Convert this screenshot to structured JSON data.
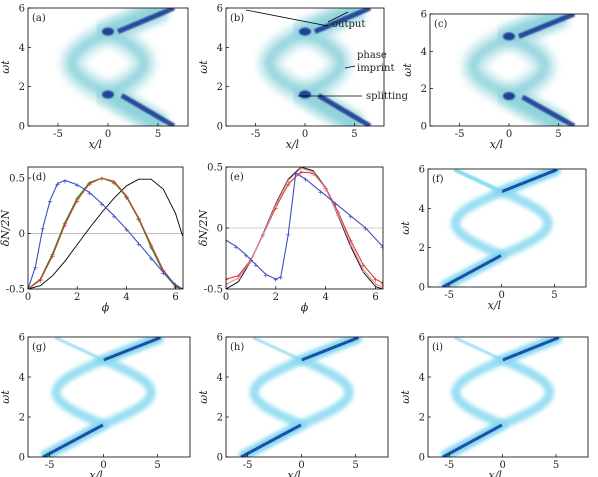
{
  "figure": {
    "annotations": {
      "output": "output",
      "phase": "phase",
      "imprint": "imprint",
      "splitting": "splitting"
    }
  },
  "chart_data": [
    {
      "id": "a",
      "type": "heatmap",
      "panel_label": "(a)",
      "xlabel": "x/l",
      "ylabel": "ωt",
      "xlim": [
        -8,
        8
      ],
      "ylim": [
        0,
        6
      ],
      "xticks": [
        "-5",
        "0",
        "5"
      ],
      "yticks": [
        "0",
        "2",
        "4",
        "6"
      ],
      "colors": {
        "light": "#8fd3dc",
        "dark": "#1f3a93"
      }
    },
    {
      "id": "b",
      "type": "heatmap",
      "panel_label": "(b)",
      "xlabel": "x/l",
      "ylabel": "ωt",
      "xlim": [
        -8,
        8
      ],
      "ylim": [
        0,
        6
      ],
      "xticks": [
        "-5",
        "0",
        "5"
      ],
      "yticks": [
        "0",
        "2",
        "4",
        "6"
      ],
      "colors": {
        "light": "#8fd3dc",
        "dark": "#1f3a93"
      }
    },
    {
      "id": "c",
      "type": "heatmap",
      "panel_label": "(c)",
      "xlabel": "x/l",
      "ylabel": "ωt",
      "xlim": [
        -8,
        8
      ],
      "ylim": [
        0,
        6
      ],
      "xticks": [
        "-5",
        "0",
        "5"
      ],
      "yticks": [
        "0",
        "2",
        "4",
        "6"
      ],
      "colors": {
        "light": "#8fd3dc",
        "dark": "#1f3a93"
      }
    },
    {
      "id": "d",
      "type": "line",
      "panel_label": "(d)",
      "xlabel": "ϕ",
      "ylabel": "δN/2N",
      "xlim": [
        0,
        6.3
      ],
      "ylim": [
        -0.5,
        0.6
      ],
      "xticks": [
        "0",
        "2",
        "4",
        "6"
      ],
      "yticks": [
        "-0.5",
        "0",
        "0.5"
      ],
      "series": [
        {
          "color": "#000000",
          "x": [
            0,
            0.5,
            1.0,
            1.5,
            2.0,
            2.5,
            3.0,
            3.5,
            4.0,
            4.5,
            5.0,
            5.5,
            6.0,
            6.28
          ],
          "y": [
            -0.5,
            -0.47,
            -0.38,
            -0.25,
            -0.1,
            0.05,
            0.19,
            0.32,
            0.43,
            0.49,
            0.49,
            0.4,
            0.18,
            -0.02
          ]
        },
        {
          "color": "#2e8b2e",
          "x": [
            0,
            0.5,
            1.0,
            1.5,
            2.0,
            2.5,
            3.0,
            3.5,
            4.0,
            4.5,
            5.0,
            5.5,
            6.0,
            6.28
          ],
          "y": [
            -0.5,
            -0.41,
            -0.18,
            0.1,
            0.32,
            0.46,
            0.5,
            0.46,
            0.33,
            0.13,
            -0.12,
            -0.35,
            -0.48,
            -0.5
          ]
        },
        {
          "color": "#d33b2c",
          "x": [
            0,
            0.5,
            1.0,
            1.5,
            2.0,
            2.5,
            3.0,
            3.5,
            4.0,
            4.5,
            5.0,
            5.5,
            6.0,
            6.28
          ],
          "y": [
            -0.5,
            -0.42,
            -0.2,
            0.08,
            0.3,
            0.45,
            0.5,
            0.47,
            0.34,
            0.14,
            -0.1,
            -0.33,
            -0.47,
            -0.5
          ]
        },
        {
          "color": "#3a4fc4",
          "x": [
            0,
            0.3,
            0.6,
            0.9,
            1.2,
            1.5,
            2.0,
            2.5,
            3.0,
            3.5,
            4.0,
            4.5,
            5.0,
            5.5,
            6.0,
            6.28
          ],
          "y": [
            -0.5,
            -0.3,
            0.05,
            0.3,
            0.45,
            0.48,
            0.44,
            0.37,
            0.27,
            0.16,
            0.04,
            -0.09,
            -0.22,
            -0.35,
            -0.46,
            -0.5
          ]
        }
      ]
    },
    {
      "id": "e",
      "type": "line",
      "panel_label": "(e)",
      "xlabel": "ϕ",
      "ylabel": "δN/2N",
      "xlim": [
        0,
        6.3
      ],
      "ylim": [
        -0.5,
        0.5
      ],
      "xticks": [
        "0",
        "2",
        "4",
        "6"
      ],
      "yticks": [
        "-0.5",
        "0",
        "0.5"
      ],
      "series": [
        {
          "color": "#000000",
          "x": [
            0,
            0.5,
            1.0,
            1.5,
            2.0,
            2.5,
            3.0,
            3.5,
            4.0,
            4.5,
            5.0,
            5.5,
            6.0,
            6.28
          ],
          "y": [
            -0.5,
            -0.44,
            -0.27,
            -0.04,
            0.2,
            0.4,
            0.5,
            0.47,
            0.33,
            0.1,
            -0.15,
            -0.36,
            -0.48,
            -0.5
          ]
        },
        {
          "color": "#d33b2c",
          "x": [
            0,
            0.5,
            1.0,
            1.5,
            2.0,
            2.5,
            3.0,
            3.5,
            4.0,
            4.5,
            5.0,
            5.5,
            6.0,
            6.28
          ],
          "y": [
            -0.42,
            -0.39,
            -0.26,
            -0.05,
            0.17,
            0.36,
            0.46,
            0.45,
            0.33,
            0.13,
            -0.1,
            -0.3,
            -0.42,
            -0.45
          ]
        },
        {
          "color": "#e08a9a",
          "x": [
            0,
            0.5,
            1.0,
            1.5,
            2.0,
            2.5,
            3.0,
            3.5,
            4.0,
            4.5,
            5.0,
            5.5,
            6.0,
            6.28
          ],
          "y": [
            -0.46,
            -0.41,
            -0.27,
            -0.05,
            0.19,
            0.39,
            0.49,
            0.46,
            0.32,
            0.11,
            -0.13,
            -0.34,
            -0.46,
            -0.48
          ]
        },
        {
          "color": "#3a4fc4",
          "x": [
            0,
            0.4,
            0.8,
            1.2,
            1.6,
            2.0,
            2.2,
            2.5,
            2.8,
            3.2,
            3.8,
            4.4,
            5.0,
            5.6,
            6.28
          ],
          "y": [
            -0.1,
            -0.15,
            -0.22,
            -0.3,
            -0.38,
            -0.42,
            -0.4,
            -0.05,
            0.45,
            0.4,
            0.3,
            0.2,
            0.1,
            0.0,
            -0.15
          ]
        }
      ]
    },
    {
      "id": "f",
      "type": "heatmap",
      "panel_label": "(f)",
      "xlabel": "x/l",
      "ylabel": "ωt",
      "xlim": [
        -7,
        8
      ],
      "ylim": [
        0,
        6
      ],
      "xticks": [
        "-5",
        "0",
        "5"
      ],
      "yticks": [
        "0",
        "2",
        "4",
        "6"
      ],
      "colors": {
        "light": "#7fd6ef",
        "dark": "#1d4fa8"
      }
    },
    {
      "id": "g",
      "type": "heatmap",
      "panel_label": "(g)",
      "xlabel": "x/l",
      "ylabel": "ωt",
      "xlim": [
        -7,
        8
      ],
      "ylim": [
        0,
        6
      ],
      "xticks": [
        "-5",
        "0",
        "5"
      ],
      "yticks": [
        "0",
        "2",
        "4",
        "6"
      ],
      "colors": {
        "light": "#7fd6ef",
        "dark": "#1d4fa8"
      }
    },
    {
      "id": "h",
      "type": "heatmap",
      "panel_label": "(h)",
      "xlabel": "x/l",
      "ylabel": "ωt",
      "xlim": [
        -7,
        8
      ],
      "ylim": [
        0,
        6
      ],
      "xticks": [
        "-5",
        "0",
        "5"
      ],
      "yticks": [
        "0",
        "2",
        "4",
        "6"
      ],
      "colors": {
        "light": "#7fd6ef",
        "dark": "#1d4fa8"
      }
    },
    {
      "id": "i",
      "type": "heatmap",
      "panel_label": "(i)",
      "xlabel": "x/l",
      "ylabel": "ωt",
      "xlim": [
        -7,
        8
      ],
      "ylim": [
        0,
        6
      ],
      "xticks": [
        "-5",
        "0",
        "5"
      ],
      "yticks": [
        "0",
        "2",
        "4",
        "6"
      ],
      "colors": {
        "light": "#7fd6ef",
        "dark": "#1d4fa8"
      }
    }
  ]
}
